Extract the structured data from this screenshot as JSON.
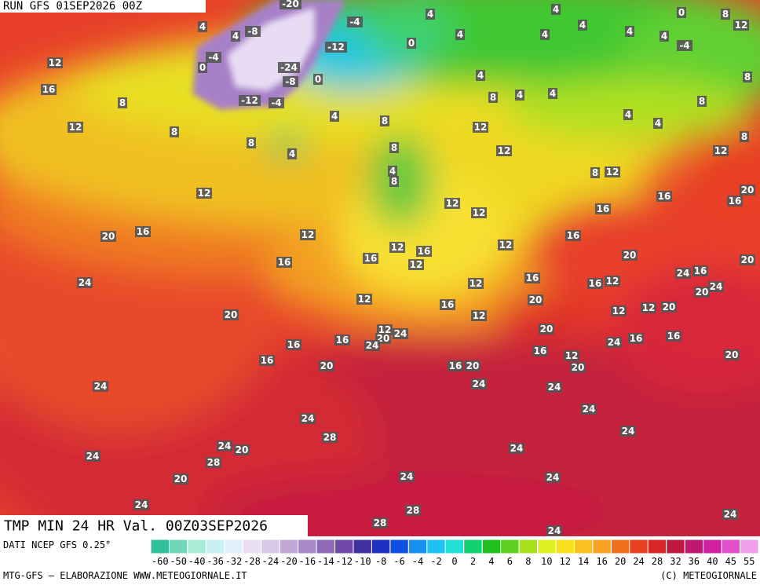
{
  "header": {
    "run": "RUN GFS 01SEP2026 00Z"
  },
  "map": {
    "title": "TMP MIN 24 HR Val. 00Z03SEP2026",
    "labels": [
      -20,
      -4,
      -8,
      4,
      -12,
      0,
      4,
      4,
      4,
      4,
      4,
      -4,
      12,
      8,
      0,
      4,
      4,
      4,
      -4,
      0,
      -24,
      -8,
      0,
      -12,
      -4,
      12,
      16,
      8,
      12,
      8,
      8,
      4,
      4,
      8,
      4,
      8,
      4,
      4,
      8,
      4,
      4,
      8,
      12,
      8,
      12,
      12,
      8,
      4,
      8,
      8,
      12,
      12,
      20,
      16,
      16,
      16,
      12,
      12,
      20,
      16,
      12,
      16,
      12,
      16,
      12,
      16,
      12,
      16,
      20,
      20,
      24,
      16,
      24,
      16,
      12,
      16,
      12,
      24,
      20,
      12,
      20,
      16,
      12,
      12,
      12,
      20,
      20,
      20,
      12,
      20,
      24,
      16,
      16,
      24,
      24,
      16,
      16,
      16,
      12,
      20,
      16,
      20,
      16,
      20,
      20,
      24,
      24,
      24,
      24,
      24,
      24,
      28,
      24,
      20,
      24,
      24,
      28,
      20,
      24,
      24,
      24,
      28,
      28,
      24,
      24
    ]
  },
  "legend": {
    "source": "DATI NCEP GFS 0.25°",
    "ticks": [
      -60,
      -50,
      -40,
      -36,
      -32,
      -28,
      -24,
      -20,
      -16,
      -14,
      -12,
      -10,
      -8,
      -6,
      -4,
      -2,
      0,
      2,
      4,
      6,
      8,
      10,
      12,
      14,
      16,
      20,
      24,
      28,
      32,
      36,
      40,
      45,
      55
    ]
  },
  "footer": {
    "credit": "MTG-GFS — ELABORAZIONE WWW.METEOGIORNALE.IT",
    "copyright": "(C) METEOGIORNALE"
  }
}
